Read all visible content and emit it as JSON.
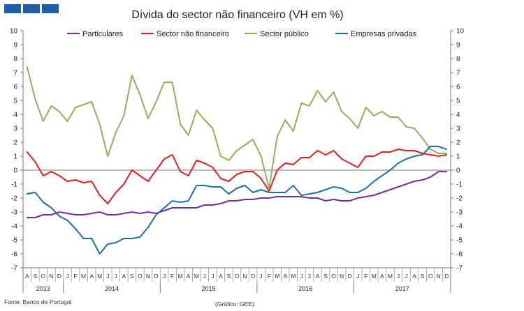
{
  "chart_data": {
    "type": "line",
    "title": "Dívida do sector não financeiro (VH em %)",
    "ylim": [
      -7,
      10
    ],
    "y_ticks": [
      -7,
      -6,
      -5,
      -4,
      -3,
      -2,
      -1,
      0,
      1,
      2,
      3,
      4,
      5,
      6,
      7,
      8,
      9,
      10
    ],
    "x_months": [
      "A",
      "S",
      "O",
      "N",
      "D",
      "J",
      "F",
      "M",
      "A",
      "M",
      "J",
      "J",
      "A",
      "S",
      "O",
      "N",
      "D",
      "J",
      "F",
      "M",
      "A",
      "M",
      "J",
      "J",
      "A",
      "S",
      "O",
      "N",
      "D",
      "J",
      "F",
      "M",
      "A",
      "M",
      "J",
      "J",
      "A",
      "S",
      "O",
      "N",
      "D",
      "J",
      "F",
      "M",
      "A",
      "M",
      "J",
      "J",
      "A",
      "S",
      "O",
      "N",
      "D"
    ],
    "years": [
      {
        "label": "2013",
        "start": 0,
        "end": 4
      },
      {
        "label": "2014",
        "start": 5,
        "end": 16
      },
      {
        "label": "2015",
        "start": 17,
        "end": 28
      },
      {
        "label": "2016",
        "start": 29,
        "end": 40
      },
      {
        "label": "2017",
        "start": 41,
        "end": 52
      }
    ],
    "legend_position": "top",
    "series": [
      {
        "name": "Particulares",
        "color": "#7030a0",
        "values": [
          -3.4,
          -3.4,
          -3.2,
          -3.2,
          -3.0,
          -3.1,
          -3.2,
          -3.2,
          -3.1,
          -3.0,
          -3.2,
          -3.2,
          -3.1,
          -3.0,
          -3.1,
          -3.0,
          -3.1,
          -2.9,
          -2.7,
          -2.7,
          -2.7,
          -2.7,
          -2.5,
          -2.5,
          -2.4,
          -2.2,
          -2.2,
          -2.1,
          -2.1,
          -2.0,
          -2.0,
          -1.9,
          -1.9,
          -1.9,
          -1.9,
          -2.0,
          -2.0,
          -2.2,
          -2.1,
          -2.2,
          -2.2,
          -2.0,
          -1.9,
          -1.8,
          -1.6,
          -1.4,
          -1.2,
          -1.0,
          -0.8,
          -0.7,
          -0.5,
          -0.1,
          -0.1
        ]
      },
      {
        "name": "Sector não financeiro",
        "color": "#e02020",
        "values": [
          1.3,
          0.6,
          -0.4,
          -0.1,
          -0.4,
          -0.8,
          -0.7,
          -0.9,
          -0.8,
          -1.8,
          -2.4,
          -1.6,
          -1.0,
          0.0,
          -0.4,
          -0.8,
          0.0,
          0.8,
          1.1,
          -0.1,
          -0.4,
          0.7,
          0.5,
          0.2,
          -0.6,
          -0.8,
          -0.3,
          -0.1,
          -0.1,
          -0.6,
          -1.5,
          0.0,
          0.5,
          0.4,
          0.9,
          0.9,
          1.4,
          1.1,
          1.4,
          0.8,
          0.5,
          0.2,
          1.0,
          1.0,
          1.3,
          1.3,
          1.5,
          1.4,
          1.4,
          1.2,
          1.1,
          1.0,
          1.1
        ]
      },
      {
        "name": "Sector público",
        "color": "#92b05a",
        "values": [
          7.4,
          5.1,
          3.5,
          4.6,
          4.2,
          3.5,
          4.5,
          4.7,
          4.9,
          3.3,
          1.0,
          2.7,
          3.9,
          6.8,
          5.4,
          3.7,
          4.9,
          6.3,
          6.3,
          3.3,
          2.5,
          4.3,
          3.6,
          3.0,
          1.0,
          0.7,
          1.4,
          1.8,
          2.2,
          1.0,
          -1.3,
          2.4,
          3.6,
          2.8,
          4.8,
          4.6,
          5.7,
          4.9,
          5.6,
          4.2,
          3.7,
          3.0,
          4.5,
          3.9,
          4.2,
          3.8,
          3.8,
          3.1,
          3.0,
          2.3,
          1.5,
          1.2,
          1.2
        ]
      },
      {
        "name": "Empresas privadas",
        "color": "#1f6fa5",
        "values": [
          -1.7,
          -1.6,
          -2.3,
          -2.7,
          -3.3,
          -3.6,
          -4.2,
          -4.9,
          -4.9,
          -6.0,
          -5.3,
          -5.2,
          -4.9,
          -4.9,
          -4.8,
          -4.1,
          -3.2,
          -2.7,
          -2.2,
          -2.3,
          -2.2,
          -1.1,
          -1.1,
          -1.2,
          -1.2,
          -1.7,
          -1.3,
          -1.1,
          -1.6,
          -1.4,
          -1.6,
          -1.6,
          -1.6,
          -1.1,
          -1.8,
          -1.7,
          -1.6,
          -1.4,
          -1.2,
          -1.3,
          -1.6,
          -1.6,
          -1.3,
          -0.8,
          -0.4,
          0.0,
          0.5,
          0.8,
          1.0,
          1.1,
          1.7,
          1.7,
          1.5
        ]
      }
    ]
  },
  "footer": {
    "source": "Fonte: Banco de Portugal",
    "credit": "(Gráfico: GEE)"
  }
}
